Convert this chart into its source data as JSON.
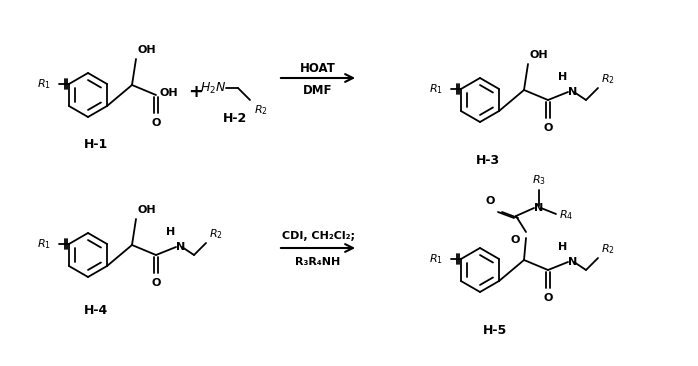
{
  "background_color": "#ffffff",
  "line_color": "#000000",
  "fig_width": 6.98,
  "fig_height": 3.66,
  "dpi": 100,
  "label_H1": "H-1",
  "label_H2": "H-2",
  "label_H3": "H-3",
  "label_H4": "H-4",
  "label_H5": "H-5",
  "reagent_top1": "HOAT",
  "reagent_top2": "DMF",
  "reagent_bot1": "CDI, CH₂Cl₂;",
  "reagent_bot2": "R₃R₄NH"
}
